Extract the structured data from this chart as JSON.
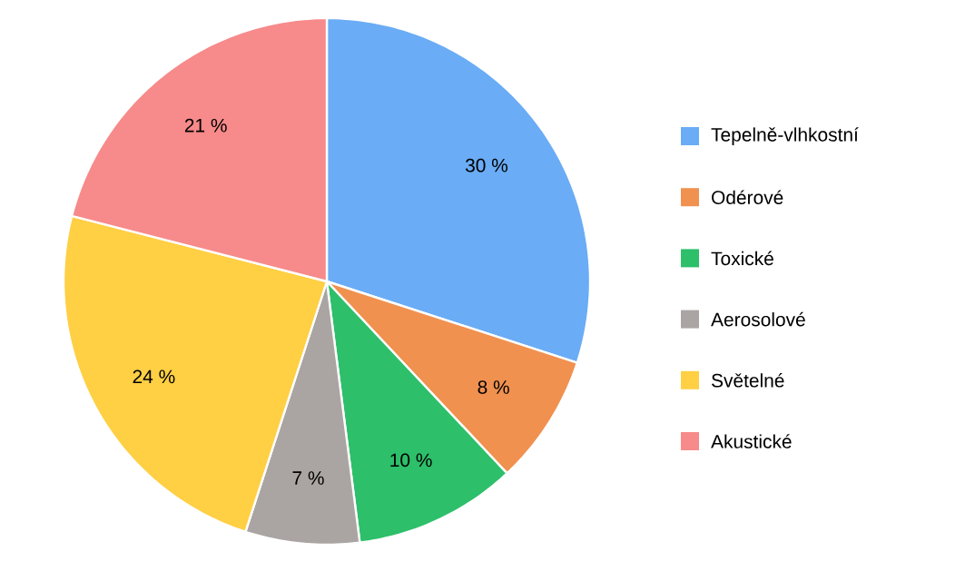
{
  "chart_data": {
    "type": "pie",
    "categories": [
      "Tepelně-vlhkostní",
      "Odérové",
      "Toxické",
      "Aerosolové",
      "Světelné",
      "Akustické"
    ],
    "values": [
      30,
      8,
      10,
      7,
      24,
      21
    ],
    "colors": [
      "#6aacf5",
      "#f0914f",
      "#2dbf6a",
      "#aaa5a2",
      "#ffcf44",
      "#f78a8a"
    ],
    "value_labels": [
      "30 %",
      "8 %",
      "10 %",
      "7 %",
      "24 %",
      "21 %"
    ],
    "legend": "right"
  }
}
